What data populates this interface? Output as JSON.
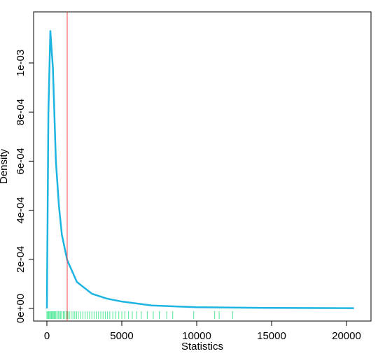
{
  "chart_data": {
    "type": "density",
    "x_label": "Statistics",
    "y_label": "Density",
    "x": [
      0,
      100,
      230,
      400,
      600,
      800,
      1000,
      1355,
      2000,
      3000,
      4000,
      5000,
      7000,
      10000,
      15000,
      20500
    ],
    "series": [
      {
        "color": "#1db4e2",
        "values": [
          0,
          0.0008,
          0.00113,
          0.00098,
          0.0006,
          0.00042,
          0.0003,
          0.000197,
          0.000108,
          6e-05,
          4e-05,
          2.8e-05,
          1.2e-05,
          5e-06,
          2e-06,
          1e-06
        ]
      }
    ],
    "vline": {
      "value": 1355,
      "color": "#ee4444"
    },
    "rug": {
      "color": "#4ee896",
      "values": [
        0,
        60,
        120,
        180,
        240,
        300,
        360,
        420,
        480,
        540,
        600,
        680,
        760,
        840,
        920,
        1000,
        1100,
        1200,
        1300,
        1400,
        1500,
        1620,
        1740,
        1860,
        1980,
        2100,
        2250,
        2400,
        2550,
        2700,
        2850,
        3000,
        3150,
        3300,
        3450,
        3600,
        3750,
        3900,
        4050,
        4200,
        4400,
        4600,
        4800,
        5000,
        5200,
        5450,
        5700,
        6000,
        6300,
        6700,
        7100,
        7500,
        8000,
        8400,
        9800,
        11200,
        11500,
        12400
      ]
    },
    "xlim": [
      -888,
      21636
    ],
    "ylim": [
      -5.13e-05,
      0.001208
    ],
    "xticks": [
      0,
      5000,
      10000,
      15000,
      20000
    ],
    "yticks": [
      {
        "value": 0,
        "label": "0e+00"
      },
      {
        "value": 0.0002,
        "label": "2e-04"
      },
      {
        "value": 0.0004,
        "label": "4e-04"
      },
      {
        "value": 0.0006,
        "label": "6e-04"
      },
      {
        "value": 0.0008,
        "label": "8e-04"
      },
      {
        "value": 0.001,
        "label": "1e-03"
      }
    ]
  }
}
